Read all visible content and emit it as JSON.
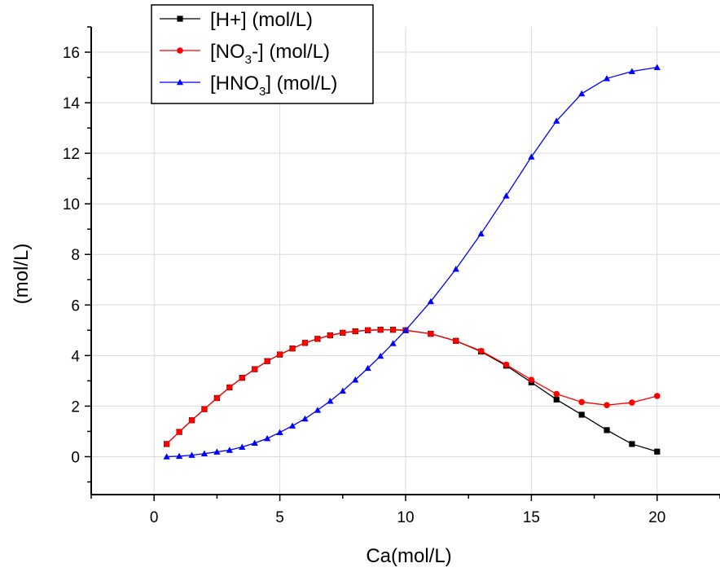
{
  "chart_data": {
    "type": "line",
    "title": "",
    "xlabel": "Ca(mol/L)",
    "ylabel": "(mol/L)",
    "xlim": [
      -2.5,
      22.5
    ],
    "ylim": [
      -1.5,
      17
    ],
    "x_ticks": [
      0,
      5,
      10,
      15,
      20
    ],
    "x_tick_labels": [
      "0",
      "5",
      "10",
      "15",
      "20"
    ],
    "y_ticks": [
      0,
      2,
      4,
      6,
      8,
      10,
      12,
      14,
      16
    ],
    "y_tick_labels": [
      "0",
      "2",
      "4",
      "6",
      "8",
      "10",
      "12",
      "14",
      "16"
    ],
    "grid": true,
    "legend_position": "top-left",
    "series": [
      {
        "name": "[H+] (mol/L)",
        "legend_main": "[H+]",
        "legend_sub": "",
        "legend_tail": " (mol/L)",
        "color": "#000000",
        "marker": "square",
        "x": [
          0.5,
          1,
          1.5,
          2,
          2.5,
          3,
          3.5,
          4,
          4.5,
          5,
          5.5,
          6,
          6.5,
          7,
          7.5,
          8,
          8.5,
          9,
          9.5,
          10,
          11,
          12,
          13,
          14,
          15,
          16,
          17,
          18,
          19,
          20
        ],
        "y": [
          0.5,
          0.98,
          1.44,
          1.88,
          2.32,
          2.74,
          3.12,
          3.46,
          3.78,
          4.04,
          4.28,
          4.5,
          4.66,
          4.8,
          4.9,
          4.96,
          5.0,
          5.02,
          5.02,
          5.0,
          4.86,
          4.58,
          4.16,
          3.6,
          2.94,
          2.26,
          1.66,
          1.05,
          0.5,
          0.2
        ]
      },
      {
        "name": "[NO3-] (mol/L)",
        "legend_main": "[NO",
        "legend_sub": "3",
        "legend_tail": "-] (mol/L)",
        "color": "#ff0000",
        "marker": "circle",
        "x": [
          0.5,
          1,
          1.5,
          2,
          2.5,
          3,
          3.5,
          4,
          4.5,
          5,
          5.5,
          6,
          6.5,
          7,
          7.5,
          8,
          8.5,
          9,
          9.5,
          10,
          11,
          12,
          13,
          14,
          15,
          16,
          17,
          18,
          19,
          20
        ],
        "y": [
          0.5,
          0.98,
          1.44,
          1.88,
          2.32,
          2.74,
          3.12,
          3.46,
          3.78,
          4.04,
          4.28,
          4.5,
          4.66,
          4.8,
          4.9,
          4.96,
          5.0,
          5.02,
          5.02,
          5.0,
          4.86,
          4.58,
          4.18,
          3.64,
          3.04,
          2.48,
          2.16,
          2.04,
          2.14,
          2.4
        ]
      },
      {
        "name": "[HNO3] (mol/L)",
        "legend_main": "[HNO",
        "legend_sub": "3",
        "legend_tail": "] (mol/L)",
        "color": "#0000ff",
        "marker": "triangle",
        "x": [
          0.5,
          1,
          1.5,
          2,
          2.5,
          3,
          3.5,
          4,
          4.5,
          5,
          5.5,
          6,
          6.5,
          7,
          7.5,
          8,
          8.5,
          9,
          9.5,
          10,
          11,
          12,
          13,
          14,
          15,
          16,
          17,
          18,
          19,
          20
        ],
        "y": [
          0.0,
          0.02,
          0.06,
          0.12,
          0.19,
          0.26,
          0.38,
          0.54,
          0.72,
          0.96,
          1.22,
          1.5,
          1.84,
          2.2,
          2.6,
          3.04,
          3.5,
          3.98,
          4.48,
          5.0,
          6.14,
          7.42,
          8.82,
          10.32,
          11.86,
          13.28,
          14.36,
          14.96,
          15.24,
          15.4
        ]
      }
    ]
  }
}
